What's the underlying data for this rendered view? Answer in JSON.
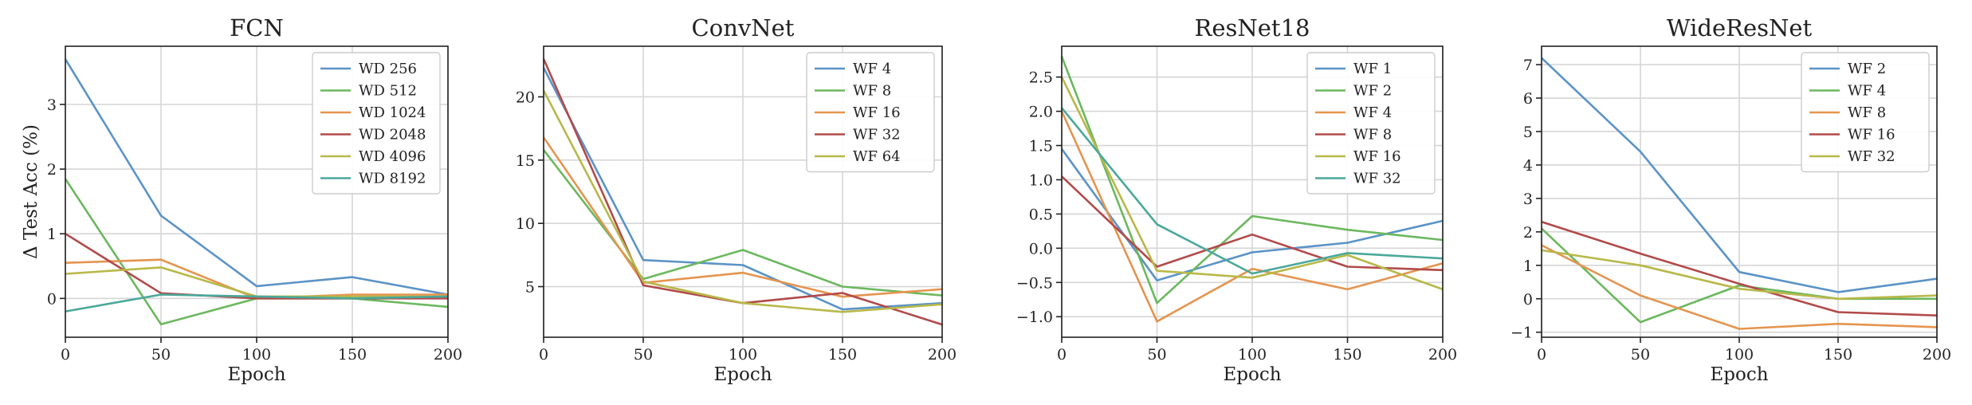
{
  "chart_data": [
    {
      "type": "line",
      "title": "FCN",
      "xlabel": "Epoch",
      "ylabel": "Δ Test Acc (%)",
      "x": [
        0,
        50,
        100,
        150,
        200
      ],
      "xlim": [
        0,
        200
      ],
      "ylim": [
        -0.6,
        3.9
      ],
      "xticks": [
        0,
        50,
        100,
        150,
        200
      ],
      "yticks": [
        0,
        1,
        2,
        3
      ],
      "grid": true,
      "legend_position": "top-right",
      "series": [
        {
          "name": "WD 256",
          "color": "#5b93c6",
          "values": [
            3.7,
            1.28,
            0.19,
            0.33,
            0.06
          ]
        },
        {
          "name": "WD 512",
          "color": "#6bb85e",
          "values": [
            1.85,
            -0.4,
            0.0,
            0.0,
            -0.13
          ]
        },
        {
          "name": "WD 1024",
          "color": "#e5944f",
          "values": [
            0.55,
            0.6,
            0.0,
            0.06,
            0.06
          ]
        },
        {
          "name": "WD 2048",
          "color": "#b24a4a",
          "values": [
            1.0,
            0.08,
            0.0,
            0.0,
            0.0
          ]
        },
        {
          "name": "WD 4096",
          "color": "#b8b84a",
          "values": [
            0.38,
            0.48,
            0.03,
            0.03,
            0.03
          ]
        },
        {
          "name": "WD 8192",
          "color": "#4aa89a",
          "values": [
            -0.2,
            0.06,
            0.03,
            0.0,
            0.03
          ]
        }
      ]
    },
    {
      "type": "line",
      "title": "ConvNet",
      "xlabel": "Epoch",
      "ylabel": "",
      "x": [
        0,
        50,
        100,
        150,
        200
      ],
      "xlim": [
        0,
        200
      ],
      "ylim": [
        1,
        24
      ],
      "xticks": [
        0,
        50,
        100,
        150,
        200
      ],
      "yticks": [
        5,
        10,
        15,
        20
      ],
      "grid": true,
      "legend_position": "top-right",
      "series": [
        {
          "name": "WF 4",
          "color": "#5b93c6",
          "values": [
            22.3,
            7.1,
            6.7,
            3.2,
            3.7
          ]
        },
        {
          "name": "WF 8",
          "color": "#6bb85e",
          "values": [
            15.8,
            5.6,
            7.9,
            5.0,
            4.3
          ]
        },
        {
          "name": "WF 16",
          "color": "#e5944f",
          "values": [
            16.8,
            5.3,
            6.1,
            4.2,
            4.8
          ]
        },
        {
          "name": "WF 32",
          "color": "#b24a4a",
          "values": [
            23.0,
            5.1,
            3.7,
            4.5,
            2.0
          ]
        },
        {
          "name": "WF 64",
          "color": "#b8b84a",
          "values": [
            20.5,
            5.4,
            3.7,
            3.0,
            3.6
          ]
        }
      ]
    },
    {
      "type": "line",
      "title": "ResNet18",
      "xlabel": "Epoch",
      "ylabel": "",
      "x": [
        0,
        50,
        100,
        150,
        200
      ],
      "xlim": [
        0,
        200
      ],
      "ylim": [
        -1.3,
        2.95
      ],
      "xticks": [
        0,
        50,
        100,
        150,
        200
      ],
      "yticks": [
        -1.0,
        -0.5,
        0.0,
        0.5,
        1.0,
        1.5,
        2.0,
        2.5
      ],
      "ytick_labels": [
        "−1.0",
        "−0.5",
        "0.0",
        "0.5",
        "1.0",
        "1.5",
        "2.0",
        "2.5"
      ],
      "grid": true,
      "legend_position": "top-right",
      "series": [
        {
          "name": "WF 1",
          "color": "#5b93c6",
          "values": [
            1.45,
            -0.47,
            -0.06,
            0.08,
            0.4
          ]
        },
        {
          "name": "WF 2",
          "color": "#6bb85e",
          "values": [
            2.8,
            -0.8,
            0.47,
            0.27,
            0.12
          ]
        },
        {
          "name": "WF 4",
          "color": "#e5944f",
          "values": [
            2.0,
            -1.07,
            -0.3,
            -0.6,
            -0.22
          ]
        },
        {
          "name": "WF 8",
          "color": "#b24a4a",
          "values": [
            1.05,
            -0.27,
            0.2,
            -0.27,
            -0.32
          ]
        },
        {
          "name": "WF 16",
          "color": "#b8b84a",
          "values": [
            2.5,
            -0.33,
            -0.43,
            -0.1,
            -0.6
          ]
        },
        {
          "name": "WF 32",
          "color": "#4aa89a",
          "values": [
            2.05,
            0.35,
            -0.37,
            -0.07,
            -0.15
          ]
        }
      ]
    },
    {
      "type": "line",
      "title": "WideResNet",
      "xlabel": "Epoch",
      "ylabel": "",
      "x": [
        0,
        50,
        100,
        150,
        200
      ],
      "xlim": [
        0,
        200
      ],
      "ylim": [
        -1.15,
        7.55
      ],
      "xticks": [
        0,
        50,
        100,
        150,
        200
      ],
      "yticks": [
        -1,
        0,
        1,
        2,
        3,
        4,
        5,
        6,
        7
      ],
      "ytick_labels": [
        "−1",
        "0",
        "1",
        "2",
        "3",
        "4",
        "5",
        "6",
        "7"
      ],
      "grid": true,
      "legend_position": "top-right",
      "series": [
        {
          "name": "WF 2",
          "color": "#5b93c6",
          "values": [
            7.2,
            4.4,
            0.8,
            0.2,
            0.6
          ]
        },
        {
          "name": "WF 4",
          "color": "#6bb85e",
          "values": [
            2.1,
            -0.7,
            0.4,
            0.0,
            0.0
          ]
        },
        {
          "name": "WF 8",
          "color": "#e5944f",
          "values": [
            1.6,
            0.1,
            -0.9,
            -0.75,
            -0.85
          ]
        },
        {
          "name": "WF 16",
          "color": "#b24a4a",
          "values": [
            2.3,
            1.35,
            0.45,
            -0.4,
            -0.5
          ]
        },
        {
          "name": "WF 32",
          "color": "#b8b84a",
          "values": [
            1.45,
            1.0,
            0.3,
            0.0,
            0.1
          ]
        }
      ]
    }
  ]
}
